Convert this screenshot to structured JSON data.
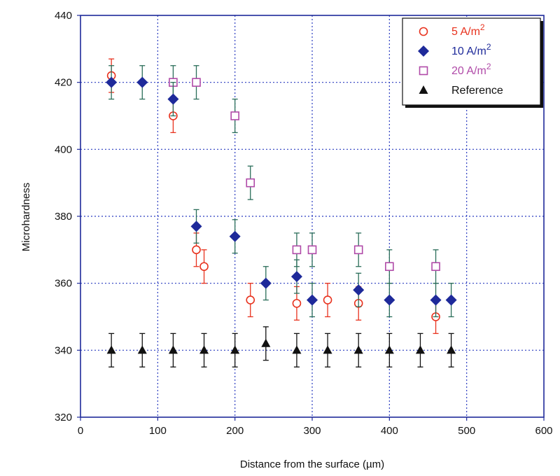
{
  "chart_data": {
    "type": "scatter",
    "xlabel": "Distance from the surface (µm)",
    "ylabel": "Microhardness",
    "xlim": [
      0,
      600
    ],
    "ylim": [
      320,
      440
    ],
    "x_ticks": [
      0,
      100,
      200,
      300,
      400,
      500,
      600
    ],
    "y_ticks": [
      320,
      340,
      360,
      380,
      400,
      420,
      440
    ],
    "grid": true,
    "legend_position": "top-right",
    "error_bar": 5,
    "series": [
      {
        "name": "5 A/m",
        "superscript": "2",
        "marker": "circle-open",
        "color": "#e8321e",
        "error_color": "#e8321e",
        "points": [
          [
            40,
            422
          ],
          [
            120,
            410
          ],
          [
            150,
            370
          ],
          [
            160,
            365
          ],
          [
            220,
            355
          ],
          [
            280,
            354
          ],
          [
            320,
            355
          ],
          [
            360,
            354
          ],
          [
            460,
            350
          ]
        ]
      },
      {
        "name": "10 A/m",
        "superscript": "2",
        "marker": "diamond-filled",
        "color": "#1e2a9a",
        "error_color": "#2b6e5a",
        "points": [
          [
            40,
            420
          ],
          [
            80,
            420
          ],
          [
            120,
            415
          ],
          [
            150,
            377
          ],
          [
            200,
            374
          ],
          [
            240,
            360
          ],
          [
            280,
            362
          ],
          [
            300,
            355
          ],
          [
            360,
            358
          ],
          [
            400,
            355
          ],
          [
            460,
            355
          ],
          [
            480,
            355
          ]
        ]
      },
      {
        "name": "20 A/m",
        "superscript": "2",
        "marker": "square-open",
        "color": "#b04aa8",
        "error_color": "#2b6e5a",
        "points": [
          [
            120,
            420
          ],
          [
            150,
            420
          ],
          [
            200,
            410
          ],
          [
            220,
            390
          ],
          [
            280,
            370
          ],
          [
            300,
            370
          ],
          [
            360,
            370
          ],
          [
            400,
            365
          ],
          [
            460,
            365
          ]
        ]
      },
      {
        "name": "Reference",
        "superscript": "",
        "marker": "triangle-filled",
        "color": "#111111",
        "error_color": "#111111",
        "points": [
          [
            40,
            340
          ],
          [
            80,
            340
          ],
          [
            120,
            340
          ],
          [
            160,
            340
          ],
          [
            200,
            340
          ],
          [
            240,
            342
          ],
          [
            280,
            340
          ],
          [
            320,
            340
          ],
          [
            360,
            340
          ],
          [
            400,
            340
          ],
          [
            440,
            340
          ],
          [
            480,
            340
          ]
        ]
      }
    ]
  }
}
